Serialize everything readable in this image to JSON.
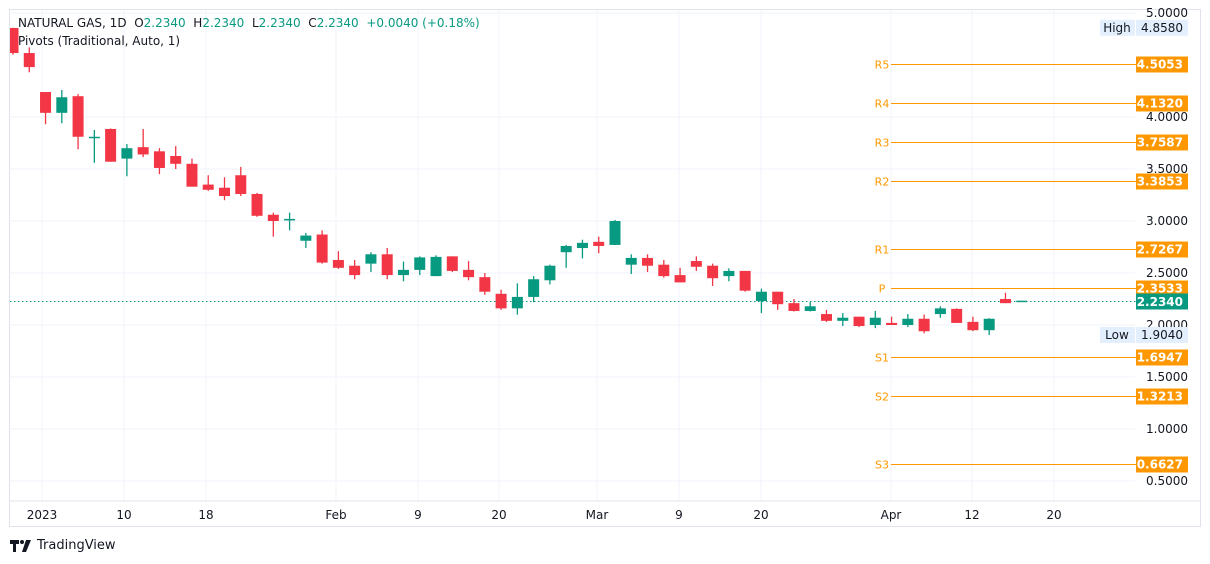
{
  "legend": {
    "symbol": "NATURAL GAS, 1D",
    "o_label": "O",
    "o": "2.2340",
    "h_label": "H",
    "h": "2.2340",
    "l_label": "L",
    "l": "2.2340",
    "c_label": "C",
    "c": "2.2340",
    "change": "+0.0040 (+0.18%)",
    "indicator": "Pivots (Traditional, Auto, 1)"
  },
  "brand": "TradingView",
  "colors": {
    "up": "#089981",
    "down": "#f23645",
    "pivot": "#ff9800",
    "grid": "#f0f3fa",
    "badge_bg": "#e3effd"
  },
  "chart_data": {
    "type": "candlestick",
    "ylim": [
      0.25,
      5.05
    ],
    "y_ticks": [
      "5.0000",
      "4.0000",
      "3.5000",
      "3.0000",
      "2.5000",
      "2.0000",
      "1.5000",
      "1.0000",
      "0.5000"
    ],
    "x_ticks": [
      "2023",
      "10",
      "18",
      "Feb",
      "9",
      "20",
      "Mar",
      "9",
      "20",
      "Apr",
      "12",
      "20"
    ],
    "high_label": "High",
    "high": "4.8580",
    "low_label": "Low",
    "low": "1.9040",
    "last_price": "2.2340",
    "pivots": [
      {
        "name": "R5",
        "value": "4.5053"
      },
      {
        "name": "R4",
        "value": "4.1320"
      },
      {
        "name": "R3",
        "value": "3.7587"
      },
      {
        "name": "R2",
        "value": "3.3853"
      },
      {
        "name": "R1",
        "value": "2.7267"
      },
      {
        "name": "P",
        "value": "2.3533"
      },
      {
        "name": "S1",
        "value": "1.6947"
      },
      {
        "name": "S2",
        "value": "1.3213"
      },
      {
        "name": "S3",
        "value": "0.6627"
      }
    ],
    "ohlc": [
      [
        4.856,
        4.858,
        4.6,
        4.615
      ],
      [
        4.615,
        4.67,
        4.43,
        4.48
      ],
      [
        4.24,
        4.24,
        3.93,
        4.04
      ],
      [
        4.04,
        4.26,
        3.94,
        4.19
      ],
      [
        4.2,
        4.22,
        3.69,
        3.81
      ],
      [
        3.8,
        3.875,
        3.56,
        3.81
      ],
      [
        3.885,
        3.89,
        3.57,
        3.57
      ],
      [
        3.6,
        3.74,
        3.43,
        3.7
      ],
      [
        3.71,
        3.885,
        3.615,
        3.64
      ],
      [
        3.67,
        3.7,
        3.45,
        3.51
      ],
      [
        3.625,
        3.72,
        3.5,
        3.55
      ],
      [
        3.55,
        3.6,
        3.33,
        3.33
      ],
      [
        3.35,
        3.44,
        3.29,
        3.3
      ],
      [
        3.32,
        3.42,
        3.2,
        3.24
      ],
      [
        3.44,
        3.52,
        3.24,
        3.26
      ],
      [
        3.26,
        3.27,
        3.04,
        3.05
      ],
      [
        3.06,
        3.08,
        2.85,
        3.0
      ],
      [
        3.01,
        3.08,
        2.91,
        3.02
      ],
      [
        2.81,
        2.885,
        2.74,
        2.86
      ],
      [
        2.87,
        2.91,
        2.59,
        2.6
      ],
      [
        2.625,
        2.71,
        2.54,
        2.55
      ],
      [
        2.57,
        2.625,
        2.44,
        2.48
      ],
      [
        2.59,
        2.7,
        2.51,
        2.68
      ],
      [
        2.68,
        2.74,
        2.44,
        2.48
      ],
      [
        2.48,
        2.61,
        2.42,
        2.53
      ],
      [
        2.53,
        2.66,
        2.48,
        2.65
      ],
      [
        2.47,
        2.67,
        2.47,
        2.655
      ],
      [
        2.66,
        2.66,
        2.51,
        2.52
      ],
      [
        2.53,
        2.615,
        2.43,
        2.46
      ],
      [
        2.46,
        2.5,
        2.29,
        2.32
      ],
      [
        2.3,
        2.34,
        2.145,
        2.16
      ],
      [
        2.16,
        2.4,
        2.1,
        2.27
      ],
      [
        2.27,
        2.47,
        2.22,
        2.44
      ],
      [
        2.43,
        2.58,
        2.39,
        2.57
      ],
      [
        2.7,
        2.77,
        2.55,
        2.76
      ],
      [
        2.74,
        2.82,
        2.64,
        2.79
      ],
      [
        2.8,
        2.85,
        2.69,
        2.76
      ],
      [
        2.77,
        3.01,
        2.77,
        3.0
      ],
      [
        2.58,
        2.68,
        2.49,
        2.645
      ],
      [
        2.645,
        2.68,
        2.51,
        2.57
      ],
      [
        2.58,
        2.625,
        2.455,
        2.47
      ],
      [
        2.48,
        2.55,
        2.41,
        2.41
      ],
      [
        2.615,
        2.66,
        2.52,
        2.56
      ],
      [
        2.57,
        2.59,
        2.375,
        2.45
      ],
      [
        2.47,
        2.545,
        2.42,
        2.52
      ],
      [
        2.52,
        2.52,
        2.32,
        2.33
      ],
      [
        2.23,
        2.35,
        2.115,
        2.32
      ],
      [
        2.32,
        2.32,
        2.145,
        2.2
      ],
      [
        2.21,
        2.25,
        2.13,
        2.135
      ],
      [
        2.135,
        2.22,
        2.13,
        2.18
      ],
      [
        2.105,
        2.145,
        2.03,
        2.04
      ],
      [
        2.04,
        2.115,
        1.99,
        2.07
      ],
      [
        2.08,
        2.08,
        1.98,
        1.99
      ],
      [
        2.0,
        2.135,
        1.97,
        2.07
      ],
      [
        2.02,
        2.08,
        2.0,
        2.0
      ],
      [
        2.0,
        2.105,
        1.98,
        2.06
      ],
      [
        2.06,
        2.1,
        1.92,
        1.94
      ],
      [
        2.105,
        2.18,
        2.07,
        2.16
      ],
      [
        2.155,
        2.16,
        2.02,
        2.02
      ],
      [
        2.03,
        2.08,
        1.94,
        1.95
      ],
      [
        1.95,
        2.065,
        1.904,
        2.06
      ],
      [
        2.25,
        2.31,
        2.21,
        2.21
      ],
      [
        2.234,
        2.234,
        2.234,
        2.234
      ]
    ]
  }
}
